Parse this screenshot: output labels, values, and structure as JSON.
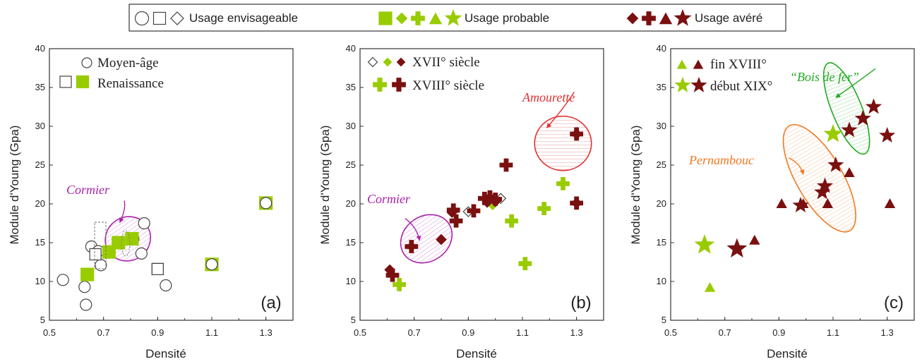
{
  "colors": {
    "green": "#99cc00",
    "darkred": "#7a1010",
    "purple": "#aa22aa",
    "red": "#e03030",
    "orange": "#f07820",
    "ellgreen": "#22aa22"
  },
  "legend": {
    "envisageable": "Usage envisageable",
    "probable": "Usage probable",
    "avere": "Usage avéré"
  },
  "chart_data": [
    {
      "type": "scatter",
      "panel_label": "(a)",
      "xlabel": "Densité",
      "ylabel": "Module d'Young (Gpa)",
      "xlim": [
        0.5,
        1.4
      ],
      "ylim": [
        5,
        40
      ],
      "xticks": [
        "0.5",
        "0.7",
        "0.9",
        "1.1",
        "1.3"
      ],
      "yticks": [
        "5",
        "10",
        "15",
        "20",
        "25",
        "30",
        "35",
        "40"
      ],
      "legend_entries": [
        "Moyen-âge",
        "Renaissance"
      ],
      "annotations": [
        {
          "text": "Cormier",
          "ellipse": {
            "cx": 0.79,
            "cy": 15.5,
            "rx": 0.085,
            "ry": 2.8,
            "angle": 35,
            "color": "#aa22aa"
          },
          "label_at": [
            0.62,
            20.6
          ],
          "arrow_to": [
            0.76,
            17.6
          ]
        }
      ],
      "series": [
        {
          "name": "Moyen-âge",
          "marker": "circle",
          "style": "hollow",
          "points": [
            [
              0.55,
              10.2
            ],
            [
              0.63,
              9.3
            ],
            [
              0.635,
              7.0
            ],
            [
              0.655,
              14.5
            ],
            [
              0.68,
              13.9
            ],
            [
              0.69,
              12.1
            ],
            [
              0.81,
              15.5
            ],
            [
              0.84,
              13.6
            ],
            [
              0.85,
              17.5
            ],
            [
              0.93,
              9.5
            ]
          ]
        },
        {
          "name": "Renaissance",
          "marker": "square",
          "style": "hollow",
          "points": [
            [
              0.67,
              13.5
            ],
            [
              0.9,
              11.6
            ]
          ]
        },
        {
          "name": "",
          "marker": "square",
          "style": "filled-green",
          "points": [
            [
              0.64,
              10.9
            ],
            [
              0.72,
              13.8
            ],
            [
              0.755,
              15.0
            ],
            [
              0.805,
              15.5
            ],
            [
              1.1,
              12.2
            ],
            [
              1.3,
              20.1
            ]
          ]
        },
        {
          "name": "",
          "marker": "circle",
          "style": "hollow",
          "points": [
            [
              1.1,
              12.2
            ],
            [
              1.3,
              20.1
            ]
          ]
        },
        {
          "name": "",
          "marker": "square",
          "style": "hollow",
          "points": [
            [
              0.9,
              11.6
            ]
          ]
        }
      ]
    },
    {
      "type": "scatter",
      "panel_label": "(b)",
      "xlabel": "Densité",
      "ylabel": "Module d'Young (Gpa)",
      "xlim": [
        0.5,
        1.4
      ],
      "ylim": [
        5,
        40
      ],
      "xticks": [
        "0.5",
        "0.7",
        "0.9",
        "1.1",
        "1.3"
      ],
      "yticks": [
        "5",
        "10",
        "15",
        "20",
        "25",
        "30",
        "35",
        "40"
      ],
      "legend_entries": [
        "XVII° siècle",
        "XVIII° siècle"
      ],
      "annotations": [
        {
          "text": "Cormier",
          "ellipse": {
            "cx": 0.745,
            "cy": 15.5,
            "rx": 0.1,
            "ry": 2.9,
            "angle": 35,
            "color": "#aa22aa"
          },
          "label_at": [
            0.51,
            18.3
          ],
          "arrow_to": [
            0.72,
            15.3
          ]
        },
        {
          "text": "Amourette",
          "ellipse": {
            "cx": 1.25,
            "cy": 27.8,
            "rx": 0.105,
            "ry": 3.5,
            "angle": 0,
            "color": "#e03030"
          },
          "label_at": [
            1.135,
            34.6
          ],
          "arrow_to": [
            1.19,
            29.8
          ]
        }
      ],
      "series": [
        {
          "name": "XVII° siècle",
          "marker": "diamond",
          "style": "hollow",
          "points": [
            [
              0.69,
              14.5
            ],
            [
              0.9,
              19.0
            ],
            [
              0.98,
              20.8
            ],
            [
              1.02,
              20.7
            ],
            [
              1.3,
              20.1
            ],
            [
              1.3,
              29.0
            ]
          ]
        },
        {
          "name": "",
          "marker": "diamond",
          "style": "filled-green",
          "points": [
            [
              0.69,
              14.5
            ],
            [
              0.99,
              19.9
            ]
          ]
        },
        {
          "name": "",
          "marker": "diamond",
          "style": "filled-darkred",
          "points": [
            [
              0.61,
              11.5
            ],
            [
              0.8,
              15.4
            ],
            [
              0.84,
              18.9
            ],
            [
              0.97,
              20.2
            ],
            [
              1.0,
              20.3
            ],
            [
              1.3,
              20.1
            ],
            [
              1.3,
              29.0
            ]
          ]
        },
        {
          "name": "XVIII° siècle",
          "marker": "plus",
          "style": "filled-green",
          "points": [
            [
              0.645,
              9.6
            ],
            [
              1.06,
              17.8
            ],
            [
              1.11,
              12.3
            ],
            [
              1.18,
              19.4
            ],
            [
              1.25,
              22.6
            ]
          ]
        },
        {
          "name": "",
          "marker": "plus",
          "style": "filled-darkred",
          "points": [
            [
              0.62,
              10.8
            ],
            [
              0.69,
              14.5
            ],
            [
              0.845,
              19.2
            ],
            [
              0.855,
              17.8
            ],
            [
              0.92,
              19.1
            ],
            [
              0.96,
              20.7
            ],
            [
              0.98,
              20.9
            ],
            [
              1.0,
              20.6
            ],
            [
              1.04,
              25.0
            ],
            [
              1.3,
              20.1
            ],
            [
              1.3,
              29.0
            ]
          ]
        }
      ]
    },
    {
      "type": "scatter",
      "panel_label": "(c)",
      "xlabel": "Densité",
      "ylabel": "Module d'Young (Gpa)",
      "xlim": [
        0.5,
        1.4
      ],
      "ylim": [
        5,
        40
      ],
      "xticks": [
        "0.5",
        "0.7",
        "0.9",
        "1.1",
        "1.3"
      ],
      "yticks": [
        "5",
        "10",
        "15",
        "20",
        "25",
        "30",
        "35",
        "40"
      ],
      "legend_entries": [
        "fin XVIII°",
        "début XIX°"
      ],
      "annotations": [
        {
          "text": "Pernambouc",
          "ellipse": {
            "cx": 1.05,
            "cy": 23.3,
            "rx": 0.085,
            "ry": 7.8,
            "angle": 30,
            "color": "#f07820"
          },
          "label_at": [
            0.78,
            26.1
          ],
          "arrow_to": [
            0.99,
            23.8
          ]
        },
        {
          "text": "“Bois de fer”",
          "ellipse": {
            "cx": 1.15,
            "cy": 32.3,
            "rx": 0.055,
            "ry": 6.3,
            "angle": 22,
            "color": "#22aa22"
          },
          "label_at": [
            1.1,
            37.6
          ],
          "arrow_to": [
            1.11,
            33.7
          ]
        }
      ],
      "series": [
        {
          "name": "fin XVIII°",
          "marker": "triangle",
          "style": "filled-green",
          "points": [
            [
              0.645,
              9.2
            ]
          ]
        },
        {
          "name": "",
          "marker": "triangle",
          "style": "filled-darkred",
          "points": [
            [
              0.81,
              15.3
            ],
            [
              0.91,
              20.0
            ],
            [
              0.99,
              20.0
            ],
            [
              1.08,
              20.0
            ],
            [
              1.16,
              24.0
            ],
            [
              1.31,
              20.0
            ]
          ]
        },
        {
          "name": "début XIX°",
          "marker": "star",
          "style": "filled-green",
          "points": [
            [
              0.625,
              14.7
            ],
            [
              1.1,
              29.0
            ]
          ]
        },
        {
          "name": "",
          "marker": "star",
          "style": "filled-darkred",
          "points": [
            [
              0.745,
              14.2
            ],
            [
              0.98,
              19.8
            ],
            [
              1.06,
              21.5
            ],
            [
              1.07,
              22.3
            ],
            [
              1.11,
              25.0
            ],
            [
              1.16,
              29.5
            ],
            [
              1.21,
              31.0
            ],
            [
              1.25,
              32.5
            ],
            [
              1.3,
              28.8
            ]
          ]
        }
      ]
    }
  ]
}
